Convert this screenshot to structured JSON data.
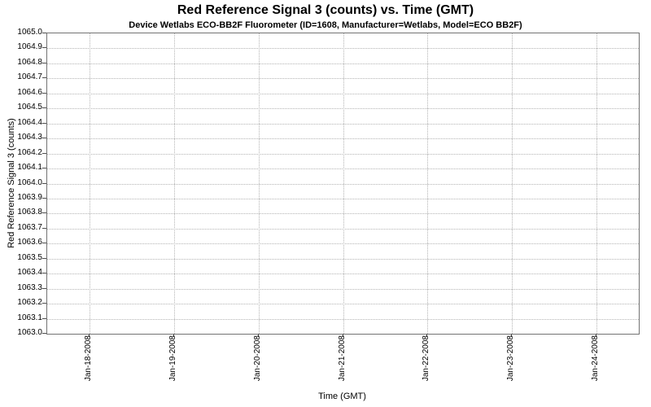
{
  "chart_data": {
    "type": "line",
    "title": "Red Reference Signal 3 (counts) vs. Time (GMT)",
    "subtitle": "Device Wetlabs ECO-BB2F Fluorometer (ID=1608, Manufacturer=Wetlabs, Model=ECO BB2F)",
    "xlabel": "Time (GMT)",
    "ylabel": "Red Reference Signal 3 (counts)",
    "ylim": [
      1063.0,
      1065.0
    ],
    "y_tick_step": 0.1,
    "y_ticks": [
      "1063.0",
      "1063.1",
      "1063.2",
      "1063.3",
      "1063.4",
      "1063.5",
      "1063.6",
      "1063.7",
      "1063.8",
      "1063.9",
      "1064.0",
      "1064.1",
      "1064.2",
      "1064.3",
      "1064.4",
      "1064.5",
      "1064.6",
      "1064.7",
      "1064.8",
      "1064.9",
      "1065.0"
    ],
    "x_ticks": [
      "Jan-18-2008",
      "Jan-19-2008",
      "Jan-20-2008",
      "Jan-21-2008",
      "Jan-22-2008",
      "Jan-23-2008",
      "Jan-24-2008"
    ],
    "series": [],
    "grid": true,
    "legend": "none",
    "colors": {
      "plot_background": "#ffffff",
      "grid_color": "#b4b4b4",
      "plot_border": "#737373",
      "text": "#000000"
    }
  }
}
